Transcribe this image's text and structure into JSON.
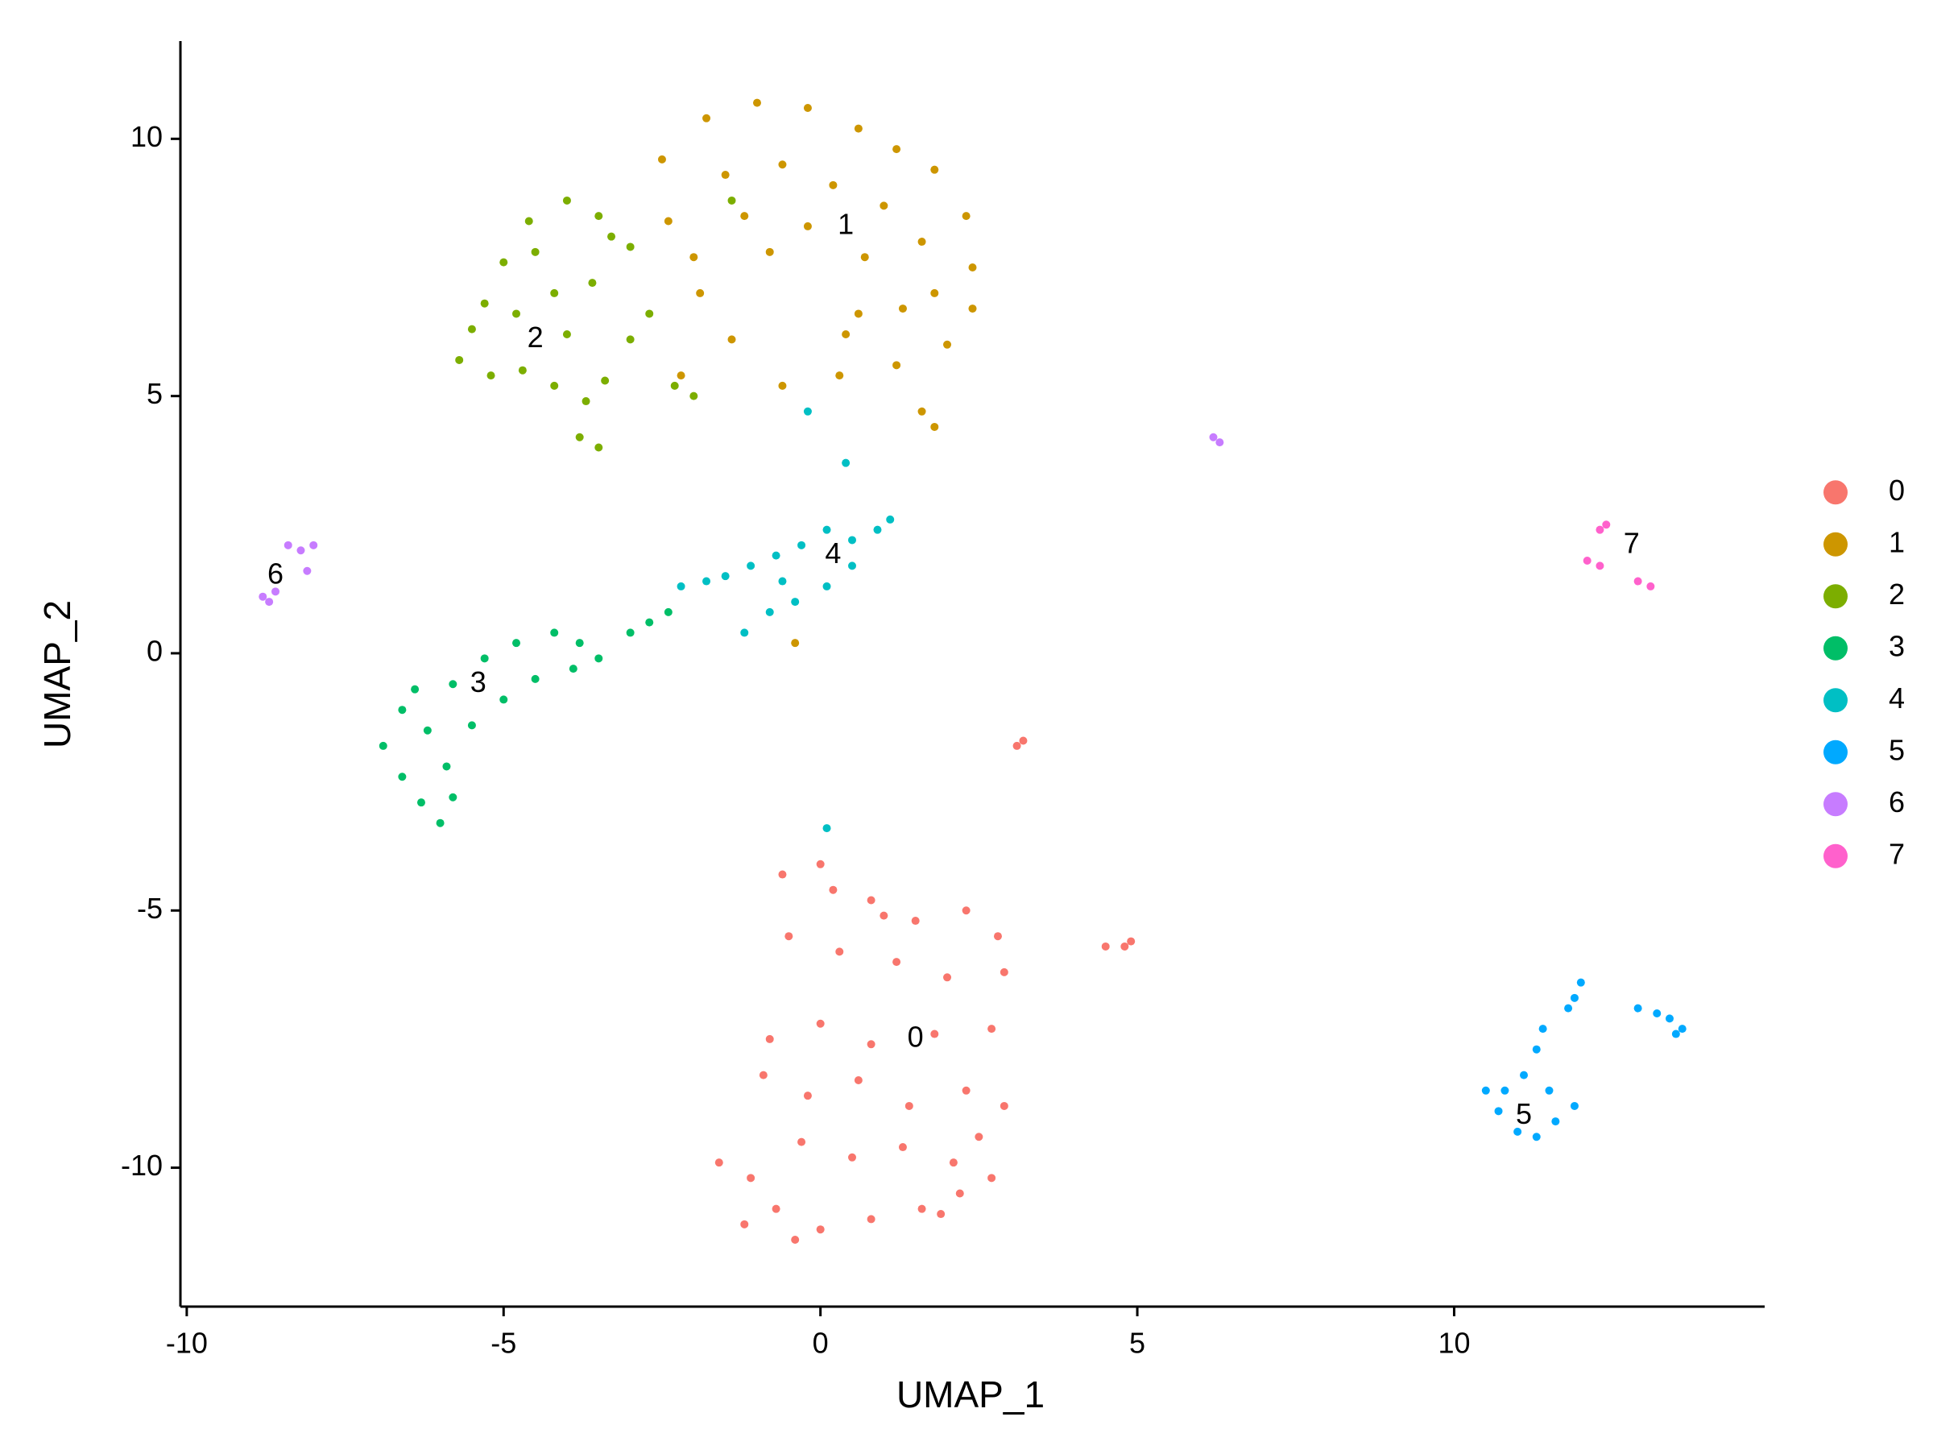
{
  "chart_data": {
    "type": "scatter",
    "x_label": "UMAP_1",
    "y_label": "UMAP_2",
    "xlim": [
      -10.1,
      14.9
    ],
    "ylim": [
      -12.7,
      11.9
    ],
    "xticks": [
      -10,
      -5,
      0,
      5,
      10
    ],
    "yticks": [
      -10,
      -5,
      0,
      5,
      10
    ],
    "grid": false,
    "legend": "right",
    "series": [
      {
        "name": "0",
        "color": "#F8766D",
        "x": [
          -0.6,
          0,
          0.8,
          1.5,
          2.3,
          2.8,
          2.9,
          -0.5,
          0.3,
          1.2,
          2.0,
          -0.8,
          0,
          0.8,
          1.8,
          2.7,
          -0.9,
          -0.2,
          0.6,
          1.4,
          2.3,
          2.9,
          -0.3,
          0.5,
          1.3,
          2.1,
          2.7,
          -1.6,
          -1.1,
          -0.7,
          0,
          0.8,
          1.6,
          2.2,
          -1.2,
          -0.4,
          0.2,
          1.0,
          2.5,
          1.9,
          3.1,
          3.2,
          4.5,
          4.9,
          4.8
        ],
        "y": [
          -4.3,
          -4.1,
          -4.8,
          -5.2,
          -5,
          -5.5,
          -6.2,
          -5.5,
          -5.8,
          -6,
          -6.3,
          -7.5,
          -7.2,
          -7.6,
          -7.4,
          -7.3,
          -8.2,
          -8.6,
          -8.3,
          -8.8,
          -8.5,
          -8.8,
          -9.5,
          -9.8,
          -9.6,
          -9.9,
          -10.2,
          -9.9,
          -10.2,
          -10.8,
          -11.2,
          -11,
          -10.8,
          -10.5,
          -11.1,
          -11.4,
          -4.6,
          -5.1,
          -9.4,
          -10.9,
          -1.8,
          -1.7,
          -5.7,
          -5.6,
          -5.7
        ]
      },
      {
        "name": "1",
        "color": "#CD9600",
        "x": [
          -2.5,
          -1.8,
          -1,
          -0.2,
          0.6,
          1.2,
          1.8,
          2.3,
          2.4,
          2.4,
          2,
          1.2,
          0.3,
          -0.6,
          -1.4,
          -1.9,
          -2.4,
          -1.5,
          -0.6,
          0.2,
          1,
          1.6,
          1.8,
          1.3,
          0.4,
          -0.8,
          -1.2,
          -2,
          0.7,
          -0.2,
          1.6,
          1.8,
          -2.2,
          -0.4,
          0.6
        ],
        "y": [
          9.6,
          10.4,
          10.7,
          10.6,
          10.2,
          9.8,
          9.4,
          8.5,
          7.5,
          6.7,
          6,
          5.6,
          5.4,
          5.2,
          6.1,
          7,
          8.4,
          9.3,
          9.5,
          9.1,
          8.7,
          8,
          7,
          6.7,
          6.2,
          7.8,
          8.5,
          7.7,
          7.7,
          8.3,
          4.7,
          4.4,
          5.4,
          0.2,
          6.6
        ]
      },
      {
        "name": "2",
        "color": "#7CAE00",
        "x": [
          -5.7,
          -5.3,
          -5,
          -4.6,
          -4,
          -3.5,
          -3,
          -2.7,
          -3,
          -3.4,
          -3.7,
          -4.2,
          -4.7,
          -5.2,
          -4.8,
          -4.2,
          -3.6,
          -4,
          -4.5,
          -3.3,
          -5.5,
          -3.8,
          -3.5,
          -2.3,
          -2,
          -1.4
        ],
        "y": [
          5.7,
          6.8,
          7.6,
          8.4,
          8.8,
          8.5,
          7.9,
          6.6,
          6.1,
          5.3,
          4.9,
          5.2,
          5.5,
          5.4,
          6.6,
          7,
          7.2,
          6.2,
          7.8,
          8.1,
          6.3,
          4.2,
          4,
          5.2,
          5,
          8.8
        ]
      },
      {
        "name": "3",
        "color": "#00BE67",
        "x": [
          -6.9,
          -6.6,
          -6.3,
          -6,
          -5.8,
          -6.2,
          -6.6,
          -5.8,
          -5.3,
          -4.8,
          -4.2,
          -3.8,
          -3.5,
          -3.9,
          -4.5,
          -5,
          -5.5,
          -3,
          -2.7,
          -2.4,
          -5.9,
          -6.4
        ],
        "y": [
          -1.8,
          -2.4,
          -2.9,
          -3.3,
          -2.8,
          -1.5,
          -1.1,
          -0.6,
          -0.1,
          0.2,
          0.4,
          0.2,
          -0.1,
          -0.3,
          -0.5,
          -0.9,
          -1.4,
          0.4,
          0.6,
          0.8,
          -2.2,
          -0.7
        ]
      },
      {
        "name": "4",
        "color": "#00BFC4",
        "x": [
          -2.2,
          -1.8,
          -1.5,
          -1.1,
          -0.7,
          -0.3,
          0.1,
          0.5,
          0.9,
          1.1,
          0.5,
          0.1,
          -0.4,
          -0.8,
          -1.2,
          -0.6,
          0.4,
          0.1,
          -0.2
        ],
        "y": [
          1.3,
          1.4,
          1.5,
          1.7,
          1.9,
          2.1,
          2.4,
          2.2,
          2.4,
          2.6,
          1.7,
          1.3,
          1.0,
          0.8,
          0.4,
          1.4,
          3.7,
          -3.4,
          4.7
        ]
      },
      {
        "name": "5",
        "color": "#00A9FF",
        "x": [
          10.5,
          10.7,
          11,
          11.3,
          11.6,
          11.9,
          11.5,
          11.1,
          11.3,
          11.4,
          11.8,
          12,
          11.9,
          10.8,
          13.2,
          13.4,
          13.6,
          13.5,
          12.9
        ],
        "y": [
          -8.5,
          -8.9,
          -9.3,
          -9.4,
          -9.1,
          -8.8,
          -8.5,
          -8.2,
          -7.7,
          -7.3,
          -6.9,
          -6.4,
          -6.7,
          -8.5,
          -7,
          -7.1,
          -7.3,
          -7.4,
          -6.9
        ]
      },
      {
        "name": "6",
        "color": "#C77CFF",
        "x": [
          -8.8,
          -8.6,
          -8.7,
          -8.4,
          -8.2,
          -8.0,
          -8.1,
          6.2,
          6.3
        ],
        "y": [
          1.1,
          1.2,
          1.0,
          2.1,
          2.0,
          2.1,
          1.6,
          4.2,
          4.1
        ]
      },
      {
        "name": "7",
        "color": "#FF61CC",
        "x": [
          12.3,
          12.4,
          12.1,
          12.3,
          12.9,
          13.1
        ],
        "y": [
          2.4,
          2.5,
          1.8,
          1.7,
          1.4,
          1.3
        ]
      }
    ],
    "annotations": [
      {
        "text": "0",
        "x": 1.5,
        "y": -7.5
      },
      {
        "text": "1",
        "x": 0.4,
        "y": 8.3
      },
      {
        "text": "2",
        "x": -4.5,
        "y": 6.1
      },
      {
        "text": "3",
        "x": -5.4,
        "y": -0.6
      },
      {
        "text": "4",
        "x": 0.2,
        "y": 1.9
      },
      {
        "text": "5",
        "x": 11.1,
        "y": -9.0
      },
      {
        "text": "6",
        "x": -8.6,
        "y": 1.5
      },
      {
        "text": "7",
        "x": 12.8,
        "y": 2.1
      }
    ]
  }
}
